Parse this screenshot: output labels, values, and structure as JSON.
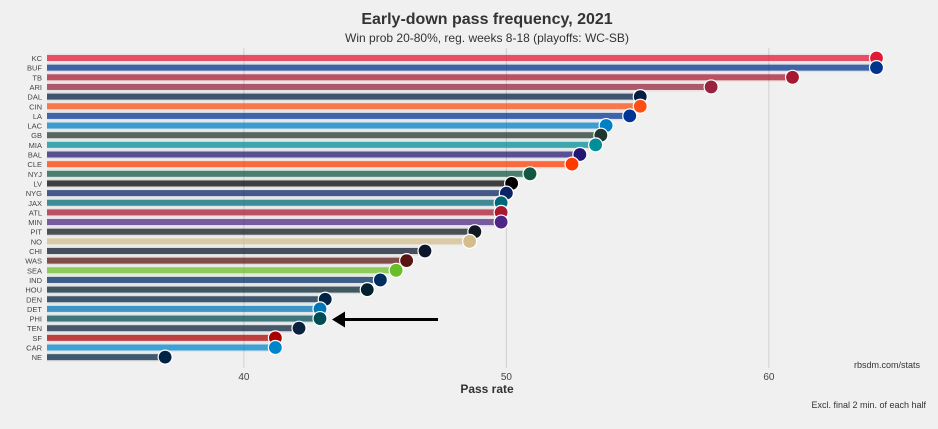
{
  "chart_data": {
    "type": "bar",
    "orientation": "horizontal",
    "title": "Early-down pass frequency, 2021",
    "subtitle": "Win prob 20-80%, reg. weeks 8-18 (playoffs: WC-SB)",
    "xlabel": "Pass rate",
    "ylabel": "",
    "xlim": [
      32.5,
      67.5
    ],
    "xticks": [
      40,
      50,
      60
    ],
    "grid": true,
    "source": "rbsdm.com/stats",
    "footnote": "Excl. final 2 min. of each half",
    "highlight": "PHI",
    "categories": [
      "KC",
      "BUF",
      "TB",
      "ARI",
      "DAL",
      "CIN",
      "LA",
      "LAC",
      "GB",
      "MIA",
      "BAL",
      "CLE",
      "NYJ",
      "LV",
      "NYG",
      "JAX",
      "ATL",
      "MIN",
      "PIT",
      "NO",
      "CHI",
      "WAS",
      "SEA",
      "IND",
      "HOU",
      "DEN",
      "DET",
      "PHI",
      "TEN",
      "SF",
      "CAR",
      "NE"
    ],
    "values": [
      64.1,
      64.1,
      60.9,
      57.8,
      55.1,
      55.1,
      54.7,
      53.8,
      53.6,
      53.4,
      52.8,
      52.5,
      50.9,
      50.2,
      50.0,
      49.8,
      49.8,
      49.8,
      48.8,
      48.6,
      46.9,
      46.2,
      45.8,
      45.2,
      44.7,
      43.1,
      42.9,
      42.9,
      42.1,
      41.2,
      41.2,
      37.0
    ],
    "colors": [
      "#e31837",
      "#00338d",
      "#a71930",
      "#97233f",
      "#041e42",
      "#fb4f14",
      "#003594",
      "#0080c6",
      "#203731",
      "#008e97",
      "#241773",
      "#ff3c00",
      "#125740",
      "#000000",
      "#0b2265",
      "#006778",
      "#a71930",
      "#4f2683",
      "#101820",
      "#d3bc8d",
      "#0b162a",
      "#5a1414",
      "#69be28",
      "#002c5f",
      "#03202f",
      "#002244",
      "#0076b6",
      "#004c54",
      "#0c2340",
      "#aa0000",
      "#0085ca",
      "#002244"
    ]
  }
}
